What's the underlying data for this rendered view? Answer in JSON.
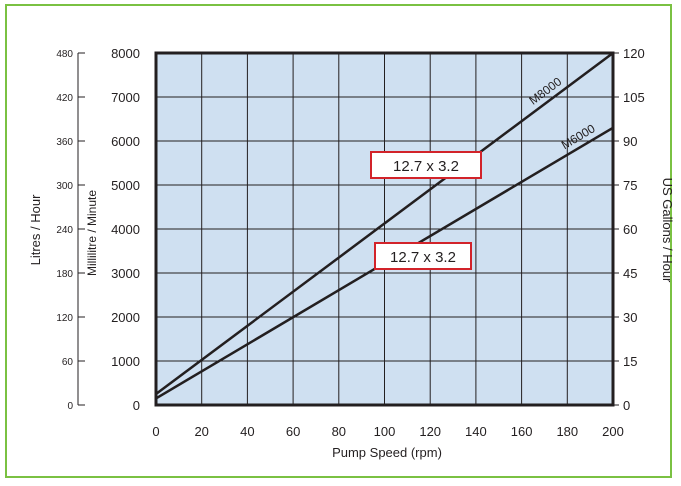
{
  "chart_data": {
    "type": "line",
    "xlabel": "Pump Speed (rpm)",
    "x_ticks": [
      "0",
      "20",
      "40",
      "60",
      "80",
      "100",
      "120",
      "140",
      "160",
      "180",
      "200"
    ],
    "xlim": [
      0,
      200
    ],
    "y_axes": {
      "litres_hour": {
        "label": "Litres / Hour",
        "ticks": [
          "0",
          "60",
          "120",
          "180",
          "240",
          "300",
          "360",
          "420",
          "480"
        ],
        "ylim": [
          0,
          480
        ]
      },
      "millilitre_minute": {
        "label": "Millilitre / Minute",
        "ticks": [
          "0",
          "1000",
          "2000",
          "3000",
          "4000",
          "5000",
          "6000",
          "7000",
          "8000"
        ],
        "ylim": [
          0,
          8000
        ]
      },
      "us_gallons_hour": {
        "label": "US Gallons / Hour",
        "ticks": [
          "0",
          "15",
          "30",
          "45",
          "60",
          "75",
          "90",
          "105",
          "120"
        ],
        "ylim": [
          0,
          120
        ]
      }
    },
    "grid": true,
    "series": [
      {
        "name": "M8000",
        "x": [
          0,
          200
        ],
        "y_ml_min": [
          250,
          8000
        ],
        "color": "#231f20"
      },
      {
        "name": "M6000",
        "x": [
          0,
          200
        ],
        "y_ml_min": [
          150,
          6300
        ],
        "color": "#231f20"
      }
    ],
    "annotations": [
      {
        "text": "12.7 x 3.2",
        "series": "M8000"
      },
      {
        "text": "12.7 x 3.2",
        "series": "M6000"
      }
    ],
    "colors": {
      "plot_background": "#cfe0f1",
      "grid": "#231f20",
      "frame": "#7ac142",
      "callout_border": "#d2232a"
    }
  }
}
